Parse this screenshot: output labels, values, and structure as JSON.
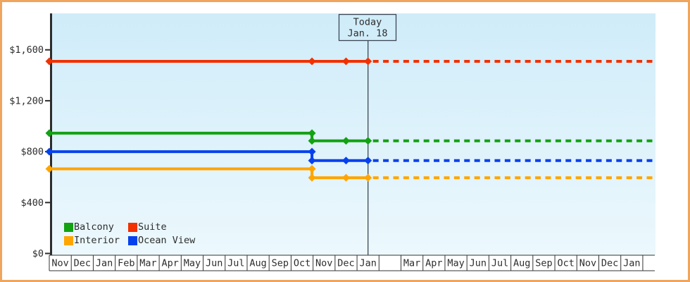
{
  "colors": {
    "frame_border": "#efa55d",
    "background": "#ffffff",
    "plot_bg_top": "#cfecf9",
    "plot_bg_bottom": "#ecf8fd",
    "axis": "#2d2d2d",
    "text": "#2d2d2d",
    "month_border": "#333333",
    "today_line": "#3c4654"
  },
  "chart_data": {
    "type": "line",
    "title": "",
    "x_unit": "months_from_start",
    "y_axis": {
      "tick_labels": [
        "$0",
        "$400",
        "$800",
        "$1,200",
        "$1,600"
      ],
      "tick_values": [
        0,
        400,
        800,
        1200,
        1600
      ],
      "ylim": [
        0,
        1885
      ],
      "grid": false
    },
    "x_axis": {
      "months": [
        "Nov",
        "Dec",
        "Jan",
        "Feb",
        "Mar",
        "Apr",
        "May",
        "Jun",
        "Jul",
        "Aug",
        "Sep",
        "Oct",
        "Nov",
        "Dec",
        "Jan",
        "",
        "Mar",
        "Apr",
        "May",
        "Jun",
        "Jul",
        "Aug",
        "Sep",
        "Oct",
        "Nov",
        "Dec",
        "Jan"
      ]
    },
    "today": {
      "title": "Today",
      "date": "Jan. 18",
      "month_offset": 14.5
    },
    "forecast": {
      "style": "dashed",
      "end_month_offset": 27.45
    },
    "series": [
      {
        "name": "Balcony",
        "color": "#12a212",
        "points": [
          {
            "t": 0,
            "price": 945
          },
          {
            "t": 11.95,
            "price": 945
          },
          {
            "t": 11.95,
            "price": 885
          },
          {
            "t": 13.5,
            "price": 885
          },
          {
            "t": 14.5,
            "price": 885
          }
        ],
        "forecast_price": 885
      },
      {
        "name": "Suite",
        "color": "#f23000",
        "points": [
          {
            "t": 0,
            "price": 1510
          },
          {
            "t": 11.95,
            "price": 1510
          },
          {
            "t": 13.5,
            "price": 1510
          },
          {
            "t": 14.5,
            "price": 1510
          }
        ],
        "forecast_price": 1510
      },
      {
        "name": "Interior",
        "color": "#ffa500",
        "points": [
          {
            "t": 0,
            "price": 665
          },
          {
            "t": 11.95,
            "price": 665
          },
          {
            "t": 11.95,
            "price": 595
          },
          {
            "t": 13.5,
            "price": 595
          },
          {
            "t": 14.5,
            "price": 595
          }
        ],
        "forecast_price": 595
      },
      {
        "name": "Ocean View",
        "color": "#0641ee",
        "points": [
          {
            "t": 0,
            "price": 800
          },
          {
            "t": 11.95,
            "price": 800
          },
          {
            "t": 11.95,
            "price": 730
          },
          {
            "t": 13.5,
            "price": 730
          },
          {
            "t": 14.5,
            "price": 730
          }
        ],
        "forecast_price": 730
      }
    ],
    "legend": {
      "position": "bottom-left",
      "entries": [
        "Balcony",
        "Suite",
        "Interior",
        "Ocean View"
      ]
    }
  }
}
